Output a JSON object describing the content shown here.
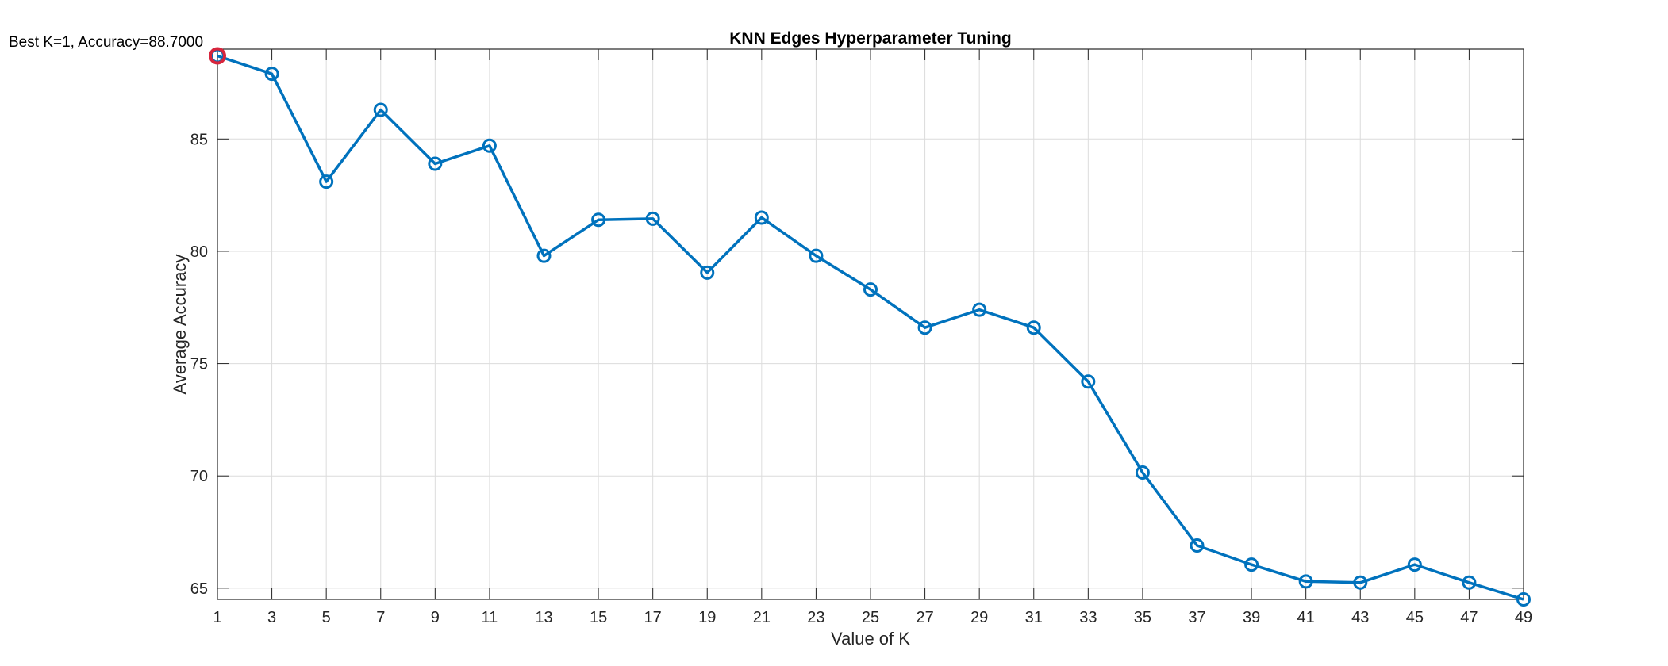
{
  "chart_data": {
    "type": "line",
    "title": "KNN Edges Hyperparameter Tuning",
    "xlabel": "Value of K",
    "ylabel": "Average Accuracy",
    "xlim": [
      1,
      49
    ],
    "ylim": [
      64.5,
      89
    ],
    "grid": true,
    "x": [
      1,
      3,
      5,
      7,
      9,
      11,
      13,
      15,
      17,
      19,
      21,
      23,
      25,
      27,
      29,
      31,
      33,
      35,
      37,
      39,
      41,
      43,
      45,
      47,
      49
    ],
    "series": [
      {
        "values": [
          88.7,
          87.9,
          83.1,
          86.3,
          83.9,
          84.7,
          79.8,
          81.4,
          81.45,
          79.05,
          81.5,
          79.8,
          78.3,
          76.6,
          77.4,
          76.6,
          74.2,
          70.15,
          66.9,
          66.05,
          65.3,
          65.25,
          66.05,
          65.25,
          64.5
        ],
        "color": "#0072BD",
        "marker": "circle"
      }
    ],
    "x_ticks": [
      "1",
      "3",
      "5",
      "7",
      "9",
      "11",
      "13",
      "15",
      "17",
      "19",
      "21",
      "23",
      "25",
      "27",
      "29",
      "31",
      "33",
      "35",
      "37",
      "39",
      "41",
      "43",
      "45",
      "47",
      "49"
    ],
    "y_ticks": [
      "65",
      "70",
      "75",
      "80",
      "85"
    ],
    "highlight": {
      "x": 1,
      "y": 88.7,
      "color": "#D7263D"
    },
    "annotation": "Best K=1, Accuracy=88.7000"
  }
}
